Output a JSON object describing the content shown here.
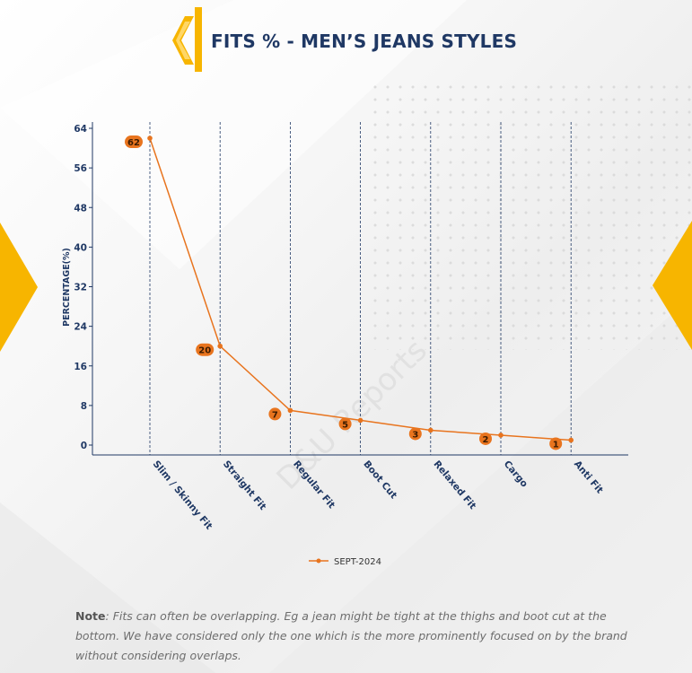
{
  "title": "FITS % - MEN’S JEANS STYLES",
  "colors": {
    "accent": "#f7b500",
    "line": "#e8741e",
    "label_fill": "#e8741e",
    "title": "#1f3864",
    "axis": "#1f3864"
  },
  "watermark": "D&U Reports",
  "note": {
    "label": "Note",
    "text": ": Fits can often be overlapping. Eg a jean might be tight at the thighs and boot cut at the bottom. We have considered only the one which is the more prominently focused on by the brand without considering overlaps."
  },
  "chart_data": {
    "type": "line",
    "title": "FITS % - MEN’S JEANS STYLES",
    "categories": [
      "Slim / Skinny Fit",
      "Straight Fit",
      "Regular Fit",
      "Boot Cut",
      "Relaxed Fit",
      "Cargo",
      "Anti Fit"
    ],
    "series": [
      {
        "name": "SEPT-2024",
        "values": [
          62,
          20,
          7,
          5,
          3,
          2,
          1
        ],
        "color": "#e8741e"
      }
    ],
    "data_labels": [
      "62",
      "20",
      "7",
      "5",
      "3",
      "2",
      "1"
    ],
    "xlabel": "",
    "ylabel": "PERCENTAGE(%)",
    "ylim": [
      0,
      64
    ],
    "yticks": [
      0,
      8,
      16,
      24,
      32,
      40,
      48,
      56,
      64
    ],
    "legend_position": "bottom",
    "vertical_gridlines": true,
    "horizontal_gridlines": false
  }
}
